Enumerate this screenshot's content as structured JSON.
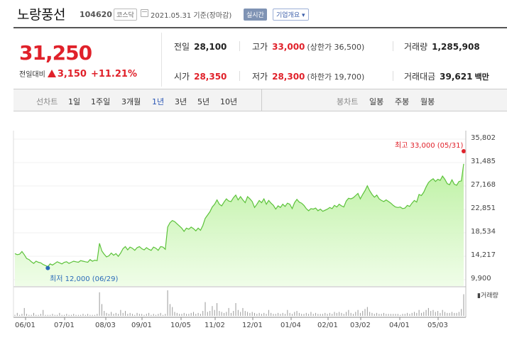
{
  "header": {
    "name": "노랑풍선",
    "code": "104620",
    "market": "코스닥",
    "date": "2021.05.31 기준(장마감)",
    "realtime": "실시간",
    "company_info": "기업개요 ▾"
  },
  "summary": {
    "price": "31,250",
    "change_label": "전일대비",
    "change": "3,150",
    "change_pct": "+11.21%",
    "prev_label": "전일",
    "prev": "28,100",
    "high_label": "고가",
    "high": "33,000",
    "upper": "(상한가 36,500)",
    "volume_label": "거래량",
    "volume": "1,285,908",
    "open_label": "시가",
    "open": "28,350",
    "low_label": "저가",
    "low": "28,300",
    "lower": "(하한가 19,700)",
    "amount_label": "거래대금",
    "amount": "39,621",
    "amount_unit": "백만"
  },
  "tabs": {
    "line_label": "선차트",
    "periods": [
      "1일",
      "1주일",
      "3개월",
      "1년",
      "3년",
      "5년",
      "10년"
    ],
    "active_period": "1년",
    "candle_label": "봉차트",
    "candles": [
      "일봉",
      "주봉",
      "월봉"
    ]
  },
  "colors": {
    "up": "#e0212a",
    "line": "#5cc23a",
    "fill_top": "#b9f09d",
    "low_marker": "#2a6bb8",
    "volume": "#9a9a9a"
  },
  "chart_data": {
    "type": "area",
    "high_label": "최고 33,000 (05/31)",
    "low_label": "최저 12,000 (06/29)",
    "volume_label": "▮거래량",
    "y_ticks": [
      "35,802",
      "31,485",
      "27,168",
      "22,851",
      "18,534",
      "14,217",
      "9,900"
    ],
    "ylim": [
      9900,
      35802
    ],
    "x_ticks": [
      "06/01",
      "07/01",
      "08/03",
      "09/01",
      "10/05",
      "11/02",
      "12/01",
      "01/04",
      "02/01",
      "03/02",
      "04/01",
      "05/03"
    ],
    "values": [
      14700,
      14500,
      14600,
      15100,
      14500,
      13800,
      13600,
      13200,
      12900,
      13300,
      13100,
      13000,
      12700,
      12500,
      12300,
      12800,
      12600,
      12900,
      13200,
      13000,
      12800,
      13100,
      13200,
      12900,
      13100,
      13300,
      13200,
      13100,
      13400,
      13300,
      13200,
      13100,
      13600,
      13300,
      13500,
      13400,
      16600,
      15200,
      14600,
      14100,
      14300,
      14800,
      14400,
      14700,
      14200,
      14800,
      15600,
      16000,
      15400,
      15900,
      15700,
      15300,
      15800,
      16000,
      15600,
      15400,
      15800,
      15500,
      15300,
      15900,
      15700,
      15300,
      16000,
      15900,
      15500,
      19600,
      20400,
      20800,
      20600,
      20200,
      19800,
      19400,
      18800,
      19400,
      19200,
      19600,
      19300,
      18900,
      19400,
      19000,
      19900,
      21200,
      21800,
      22400,
      23300,
      23800,
      24600,
      23800,
      23500,
      24200,
      24800,
      24400,
      24300,
      25000,
      25500,
      24600,
      25200,
      24600,
      24100,
      25200,
      24800,
      24300,
      23200,
      23800,
      24500,
      24100,
      24800,
      23800,
      24500,
      24000,
      23600,
      22900,
      23500,
      23200,
      23800,
      23400,
      24000,
      23800,
      23000,
      24100,
      24700,
      24200,
      24000,
      23600,
      23000,
      22600,
      23000,
      22900,
      23100,
      22600,
      22900,
      22500,
      22700,
      22900,
      23200,
      23000,
      23600,
      23300,
      23800,
      23500,
      23300,
      24400,
      24900,
      24800,
      25000,
      25400,
      25800,
      24800,
      25600,
      26300,
      27200,
      26300,
      25600,
      25100,
      25500,
      24800,
      24500,
      24300,
      24600,
      24300,
      24000,
      23600,
      23300,
      23200,
      23300,
      23000,
      23100,
      23600,
      23400,
      24000,
      24500,
      24200,
      25600,
      25400,
      26000,
      27000,
      27800,
      28200,
      28500,
      28000,
      28400,
      28200,
      29000,
      28400,
      27600,
      27400,
      28300,
      27500,
      27300,
      28000,
      28100,
      31250
    ],
    "volume": [
      1,
      3,
      1,
      2,
      8,
      2,
      1,
      1,
      3,
      1,
      1,
      2,
      6,
      1,
      1,
      1,
      2,
      1,
      1,
      3,
      1,
      1,
      2,
      1,
      1,
      2,
      1,
      1,
      1,
      2,
      1,
      2,
      1,
      1,
      1,
      2,
      24,
      12,
      5,
      3,
      2,
      4,
      2,
      3,
      2,
      6,
      3,
      5,
      2,
      3,
      2,
      1,
      3,
      2,
      2,
      1,
      2,
      3,
      1,
      2,
      1,
      2,
      3,
      1,
      2,
      26,
      12,
      9,
      4,
      3,
      2,
      2,
      3,
      2,
      2,
      3,
      4,
      2,
      3,
      2,
      5,
      14,
      4,
      5,
      10,
      6,
      13,
      5,
      4,
      3,
      4,
      8,
      3,
      5,
      13,
      6,
      4,
      8,
      5,
      4,
      3,
      4,
      3,
      2,
      3,
      2,
      3,
      2,
      6,
      3,
      2,
      2,
      3,
      2,
      3,
      2,
      6,
      3,
      2,
      4,
      5,
      3,
      2,
      2,
      3,
      2,
      4,
      2,
      3,
      2,
      2,
      2,
      3,
      2,
      3,
      2,
      4,
      3,
      4,
      3,
      2,
      4,
      6,
      3,
      2,
      4,
      6,
      3,
      5,
      7,
      9,
      4,
      3,
      2,
      3,
      2,
      2,
      3,
      2,
      2,
      2,
      2,
      2,
      2,
      1,
      2,
      2,
      3,
      2,
      3,
      4,
      3,
      6,
      3,
      4,
      6,
      8,
      5,
      6,
      4,
      5,
      3,
      6,
      4,
      3,
      3,
      4,
      3,
      3,
      4,
      7,
      22
    ]
  }
}
